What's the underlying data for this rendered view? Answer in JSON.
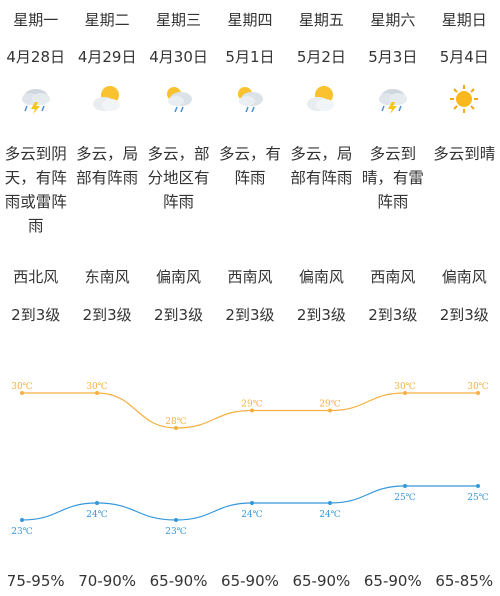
{
  "days": [
    {
      "weekday": "星期一",
      "date": "4月28日",
      "icon": "thunder-rain-cloud-icon",
      "desc": "多云到阴天，有阵雨或雷阵雨",
      "wind": "西北风",
      "level": "2到3级",
      "humidity": "75-95%"
    },
    {
      "weekday": "星期二",
      "date": "4月29日",
      "icon": "partly-cloudy-icon",
      "desc": "多云，局部有阵雨",
      "wind": "东南风",
      "level": "2到3级",
      "humidity": "70-90%"
    },
    {
      "weekday": "星期三",
      "date": "4月30日",
      "icon": "sun-cloud-rain-icon",
      "desc": "多云，部分地区有阵雨",
      "wind": "偏南风",
      "level": "2到3级",
      "humidity": "65-90%"
    },
    {
      "weekday": "星期四",
      "date": "5月1日",
      "icon": "sun-cloud-rain-icon",
      "desc": "多云，有阵雨",
      "wind": "西南风",
      "level": "2到3级",
      "humidity": "65-90%"
    },
    {
      "weekday": "星期五",
      "date": "5月2日",
      "icon": "partly-cloudy-icon",
      "desc": "多云，局部有阵雨",
      "wind": "偏南风",
      "level": "2到3级",
      "humidity": "65-90%"
    },
    {
      "weekday": "星期六",
      "date": "5月3日",
      "icon": "thunder-rain-cloud-icon",
      "desc": "多云到晴，有雷阵雨",
      "wind": "西南风",
      "level": "2到3级",
      "humidity": "65-90%"
    },
    {
      "weekday": "星期日",
      "date": "5月4日",
      "icon": "sun-icon",
      "desc": "多云到晴",
      "wind": "偏南风",
      "level": "2到3级",
      "humidity": "65-85%"
    }
  ],
  "colors": {
    "high": "#f5b041",
    "low": "#3498db",
    "text": "#333333"
  },
  "chart_data": {
    "type": "line",
    "x": [
      "星期一",
      "星期二",
      "星期三",
      "星期四",
      "星期五",
      "星期六",
      "星期日"
    ],
    "series": [
      {
        "values": [
          30,
          30,
          28,
          29,
          29,
          30,
          30
        ],
        "labels": [
          "30℃",
          "30℃",
          "28℃",
          "29℃",
          "29℃",
          "30℃",
          "30℃"
        ]
      },
      {
        "values": [
          23,
          24,
          23,
          24,
          24,
          25,
          25
        ],
        "labels": [
          "23℃",
          "24℃",
          "23℃",
          "24℃",
          "24℃",
          "25℃",
          "25℃"
        ]
      }
    ],
    "grid": false
  }
}
